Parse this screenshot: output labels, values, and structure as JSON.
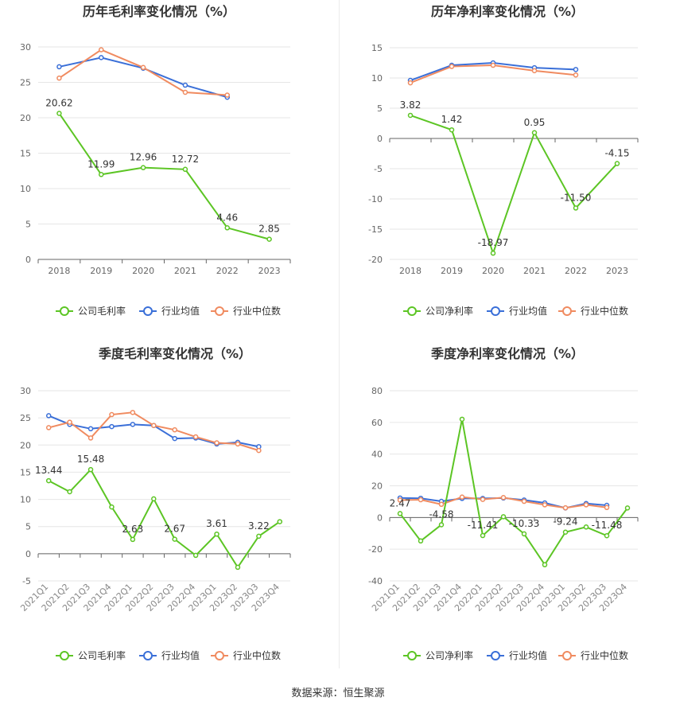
{
  "source_text": "数据来源：恒生聚源",
  "colors": {
    "company": "#5cc524",
    "industry_avg": "#3a6fd8",
    "industry_median": "#f08b60",
    "grid": "#e6e6e6",
    "axis_text": "#666666"
  },
  "chart_data": [
    {
      "type": "line",
      "title": "历年毛利率变化情况（%）",
      "categories": [
        "2018",
        "2019",
        "2020",
        "2021",
        "2022",
        "2023"
      ],
      "ylim": [
        0,
        30
      ],
      "yticks": [
        0,
        5,
        10,
        15,
        20,
        25,
        30
      ],
      "series": [
        {
          "name": "公司毛利率",
          "values": [
            20.62,
            11.99,
            12.96,
            12.72,
            4.46,
            2.85
          ],
          "labels": [
            "20.62",
            "11.99",
            "12.96",
            "12.72",
            "4.46",
            "2.85"
          ]
        },
        {
          "name": "行业均值",
          "values": [
            27.2,
            28.5,
            27.0,
            24.6,
            22.9,
            null
          ]
        },
        {
          "name": "行业中位数",
          "values": [
            25.6,
            29.6,
            27.1,
            23.6,
            23.2,
            null
          ]
        }
      ],
      "grid": true,
      "legend": "bottom"
    },
    {
      "type": "line",
      "title": "历年净利率变化情况（%）",
      "categories": [
        "2018",
        "2019",
        "2020",
        "2021",
        "2022",
        "2023"
      ],
      "ylim": [
        -20,
        15
      ],
      "yticks": [
        -20,
        -15,
        -10,
        -5,
        0,
        5,
        10,
        15
      ],
      "series": [
        {
          "name": "公司净利率",
          "values": [
            3.82,
            1.42,
            -18.97,
            0.95,
            -11.5,
            -4.15
          ],
          "labels": [
            "3.82",
            "1.42",
            "-18.97",
            "0.95",
            "-11.50",
            "-4.15"
          ]
        },
        {
          "name": "行业均值",
          "values": [
            9.6,
            12.1,
            12.5,
            11.7,
            11.4,
            null
          ]
        },
        {
          "name": "行业中位数",
          "values": [
            9.2,
            11.9,
            12.1,
            11.2,
            10.5,
            null
          ]
        }
      ],
      "grid": true,
      "legend": "bottom"
    },
    {
      "type": "line",
      "title": "季度毛利率变化情况（%）",
      "categories": [
        "2021Q1",
        "2021Q2",
        "2021Q3",
        "2021Q4",
        "2022Q1",
        "2022Q2",
        "2022Q3",
        "2022Q4",
        "2023Q1",
        "2023Q2",
        "2023Q3",
        "2023Q4"
      ],
      "ylim": [
        -5,
        30
      ],
      "yticks": [
        -5,
        0,
        5,
        10,
        15,
        20,
        25,
        30
      ],
      "series": [
        {
          "name": "公司毛利率",
          "values": [
            13.44,
            11.4,
            15.48,
            8.6,
            2.63,
            10.1,
            2.67,
            -0.3,
            3.61,
            -2.5,
            3.22,
            5.9
          ],
          "labels": [
            "13.44",
            "",
            "15.48",
            "",
            "2.63",
            "",
            "2.67",
            "",
            "3.61",
            "",
            "3.22",
            ""
          ]
        },
        {
          "name": "行业均值",
          "values": [
            25.4,
            23.8,
            23.0,
            23.4,
            23.8,
            23.6,
            21.2,
            21.3,
            20.2,
            20.5,
            19.7,
            null
          ]
        },
        {
          "name": "行业中位数",
          "values": [
            23.2,
            24.2,
            21.3,
            25.6,
            26.0,
            23.6,
            22.8,
            21.5,
            20.4,
            20.2,
            19.0,
            null
          ]
        }
      ],
      "grid": true,
      "legend": "bottom"
    },
    {
      "type": "line",
      "title": "季度净利率变化情况（%）",
      "categories": [
        "2021Q1",
        "2021Q2",
        "2021Q3",
        "2021Q4",
        "2022Q1",
        "2022Q2",
        "2022Q3",
        "2022Q4",
        "2023Q1",
        "2023Q2",
        "2023Q3",
        "2023Q4"
      ],
      "ylim": [
        -40,
        80
      ],
      "yticks": [
        -40,
        -20,
        0,
        20,
        40,
        60,
        80
      ],
      "series": [
        {
          "name": "公司净利率",
          "values": [
            2.47,
            -14.8,
            -4.58,
            62.0,
            -11.41,
            0.5,
            -10.33,
            -29.8,
            -9.24,
            -6.0,
            -11.48,
            6.0
          ],
          "labels": [
            "2.47",
            "",
            "-4.58",
            "",
            "-11.41",
            "",
            "-10.33",
            "",
            "-9.24",
            "",
            "-11.48",
            ""
          ]
        },
        {
          "name": "行业均值",
          "values": [
            12.3,
            12.1,
            10.2,
            12.0,
            12.0,
            12.3,
            11.0,
            9.2,
            6.0,
            8.8,
            7.7,
            null
          ]
        },
        {
          "name": "行业中位数",
          "values": [
            11.0,
            11.2,
            8.3,
            12.9,
            11.4,
            12.6,
            10.2,
            8.0,
            6.1,
            8.0,
            6.3,
            null
          ]
        }
      ],
      "grid": true,
      "legend": "bottom"
    }
  ]
}
